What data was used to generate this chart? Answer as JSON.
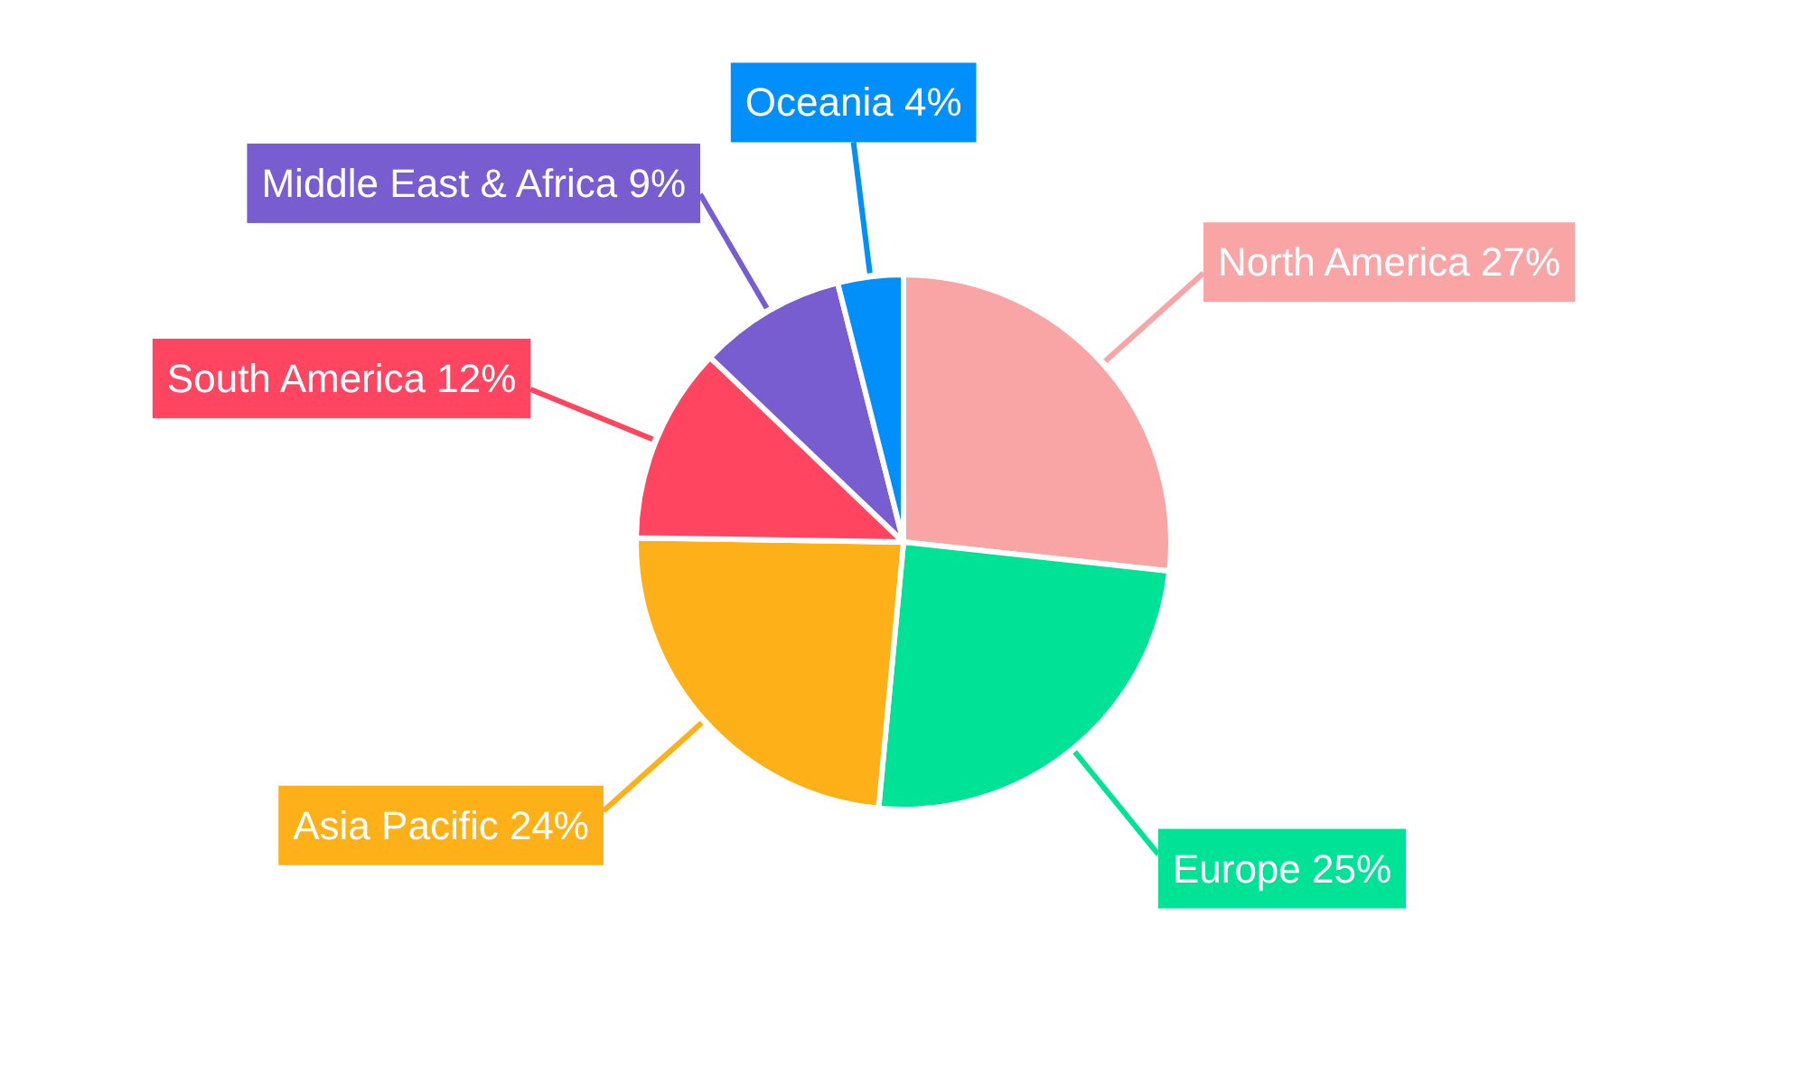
{
  "chart_data": {
    "type": "pie",
    "categories": [
      "North America",
      "Europe",
      "Asia Pacific",
      "South America",
      "Middle East & Africa",
      "Oceania"
    ],
    "values": [
      27,
      25,
      24,
      12,
      9,
      4
    ],
    "value_labels": [
      "27%",
      "25%",
      "24%",
      "12%",
      "9%",
      "4%"
    ],
    "colors": [
      "#f9a5a5",
      "#00e396",
      "#feb019",
      "#ff4560",
      "#775dd0",
      "#008ffb"
    ]
  }
}
